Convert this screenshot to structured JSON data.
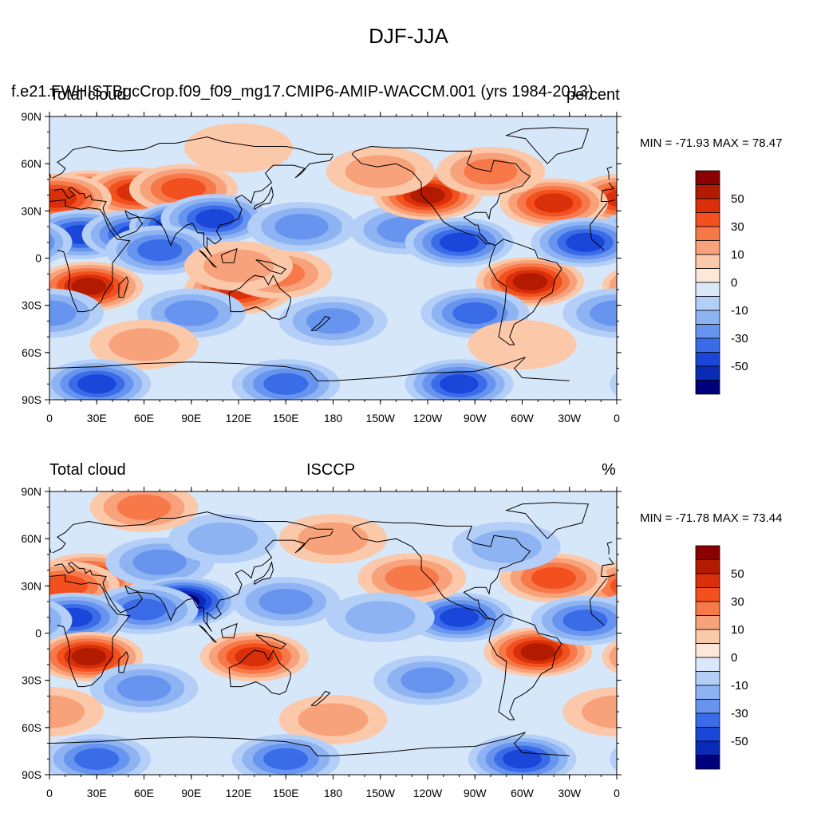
{
  "figure": {
    "title": "DJF-JJA"
  },
  "panels": [
    {
      "left_title": "Total cloud",
      "center_title": "f.e21.FWHISTBgcCrop.f09_f09_mg17.CMIP6-AMIP-WACCM.001 (yrs 1984-2013)",
      "right_title": "percent",
      "min_max": "MIN = -71.93 MAX =  78.47",
      "field": [
        {
          "lon": 25,
          "lat": 40,
          "value": 55
        },
        {
          "lon": 55,
          "lat": 42,
          "value": 45
        },
        {
          "lon": 5,
          "lat": 38,
          "value": 40
        },
        {
          "lon": 85,
          "lat": 44,
          "value": 30
        },
        {
          "lon": 20,
          "lat": 15,
          "value": -40
        },
        {
          "lon": 55,
          "lat": 15,
          "value": -45
        },
        {
          "lon": 85,
          "lat": 20,
          "value": -60
        },
        {
          "lon": 105,
          "lat": 25,
          "value": -45
        },
        {
          "lon": 70,
          "lat": 5,
          "value": -30
        },
        {
          "lon": 25,
          "lat": -18,
          "value": 55
        },
        {
          "lon": 120,
          "lat": -20,
          "value": 40
        },
        {
          "lon": 145,
          "lat": -10,
          "value": 25
        },
        {
          "lon": 160,
          "lat": 20,
          "value": -25
        },
        {
          "lon": -135,
          "lat": 18,
          "value": -20
        },
        {
          "lon": -120,
          "lat": 40,
          "value": 50
        },
        {
          "lon": -100,
          "lat": 10,
          "value": -45
        },
        {
          "lon": -55,
          "lat": -15,
          "value": 55
        },
        {
          "lon": -40,
          "lat": 35,
          "value": 45
        },
        {
          "lon": -20,
          "lat": 10,
          "value": -40
        },
        {
          "lon": -150,
          "lat": 55,
          "value": 15
        },
        {
          "lon": -80,
          "lat": 55,
          "value": 20
        },
        {
          "lon": 120,
          "lat": 70,
          "value": 5
        },
        {
          "lon": 90,
          "lat": -35,
          "value": -25
        },
        {
          "lon": -90,
          "lat": -35,
          "value": -30
        },
        {
          "lon": 0,
          "lat": -35,
          "value": -25
        },
        {
          "lon": 180,
          "lat": -40,
          "value": -20
        },
        {
          "lon": 60,
          "lat": -55,
          "value": 10
        },
        {
          "lon": -60,
          "lat": -55,
          "value": 8
        },
        {
          "lon": 30,
          "lat": -80,
          "value": -40
        },
        {
          "lon": 150,
          "lat": -80,
          "value": -35
        },
        {
          "lon": -100,
          "lat": -80,
          "value": -40
        },
        {
          "lon": 120,
          "lat": -5,
          "value": 15
        }
      ]
    },
    {
      "left_title": "Total cloud",
      "center_title": "ISCCP",
      "right_title": "%",
      "min_max": "MIN = -71.78 MAX =  73.44",
      "field": [
        {
          "lon": 25,
          "lat": 35,
          "value": 40
        },
        {
          "lon": 10,
          "lat": 30,
          "value": 35
        },
        {
          "lon": 70,
          "lat": 45,
          "value": -20
        },
        {
          "lon": 85,
          "lat": 20,
          "value": -60
        },
        {
          "lon": 60,
          "lat": 15,
          "value": -35
        },
        {
          "lon": 15,
          "lat": 10,
          "value": -45
        },
        {
          "lon": 25,
          "lat": -15,
          "value": 55
        },
        {
          "lon": 130,
          "lat": -15,
          "value": 40
        },
        {
          "lon": 150,
          "lat": 20,
          "value": -20
        },
        {
          "lon": -100,
          "lat": 10,
          "value": -40
        },
        {
          "lon": -50,
          "lat": -12,
          "value": 50
        },
        {
          "lon": -40,
          "lat": 35,
          "value": 30
        },
        {
          "lon": -20,
          "lat": 8,
          "value": -35
        },
        {
          "lon": -130,
          "lat": 35,
          "value": 20
        },
        {
          "lon": 180,
          "lat": 60,
          "value": 15
        },
        {
          "lon": -70,
          "lat": 55,
          "value": -15
        },
        {
          "lon": 110,
          "lat": 60,
          "value": -15
        },
        {
          "lon": 60,
          "lat": 80,
          "value": 20
        },
        {
          "lon": -120,
          "lat": -30,
          "value": -25
        },
        {
          "lon": 60,
          "lat": -35,
          "value": -20
        },
        {
          "lon": 0,
          "lat": -50,
          "value": 15
        },
        {
          "lon": 180,
          "lat": -55,
          "value": 15
        },
        {
          "lon": 30,
          "lat": -80,
          "value": -35
        },
        {
          "lon": -60,
          "lat": -80,
          "value": -40
        },
        {
          "lon": 150,
          "lat": -80,
          "value": -35
        },
        {
          "lon": -150,
          "lat": 10,
          "value": -10
        }
      ]
    }
  ],
  "axes": {
    "lat_ticks": [
      "90N",
      "60N",
      "30N",
      "0",
      "30S",
      "60S",
      "90S"
    ],
    "lon_ticks": [
      "0",
      "30E",
      "60E",
      "90E",
      "120E",
      "150E",
      "180",
      "150W",
      "120W",
      "90W",
      "60W",
      "30W",
      "0"
    ]
  },
  "colorbar": {
    "levels": [
      "50",
      "30",
      "10",
      "0",
      "-10",
      "-30",
      "-50"
    ],
    "colors": [
      "#8b0000",
      "#b31b00",
      "#d9300a",
      "#f2501e",
      "#f7794a",
      "#f7a27a",
      "#fbc8aa",
      "#fde7d8",
      "#dae8fa",
      "#b4cff7",
      "#8db3f2",
      "#6694ee",
      "#3b6ce8",
      "#1a47d9",
      "#0a2bb5",
      "#00007d"
    ]
  },
  "map_style": {
    "background_color": "#d7e7fa",
    "coast_color": "#000000"
  }
}
